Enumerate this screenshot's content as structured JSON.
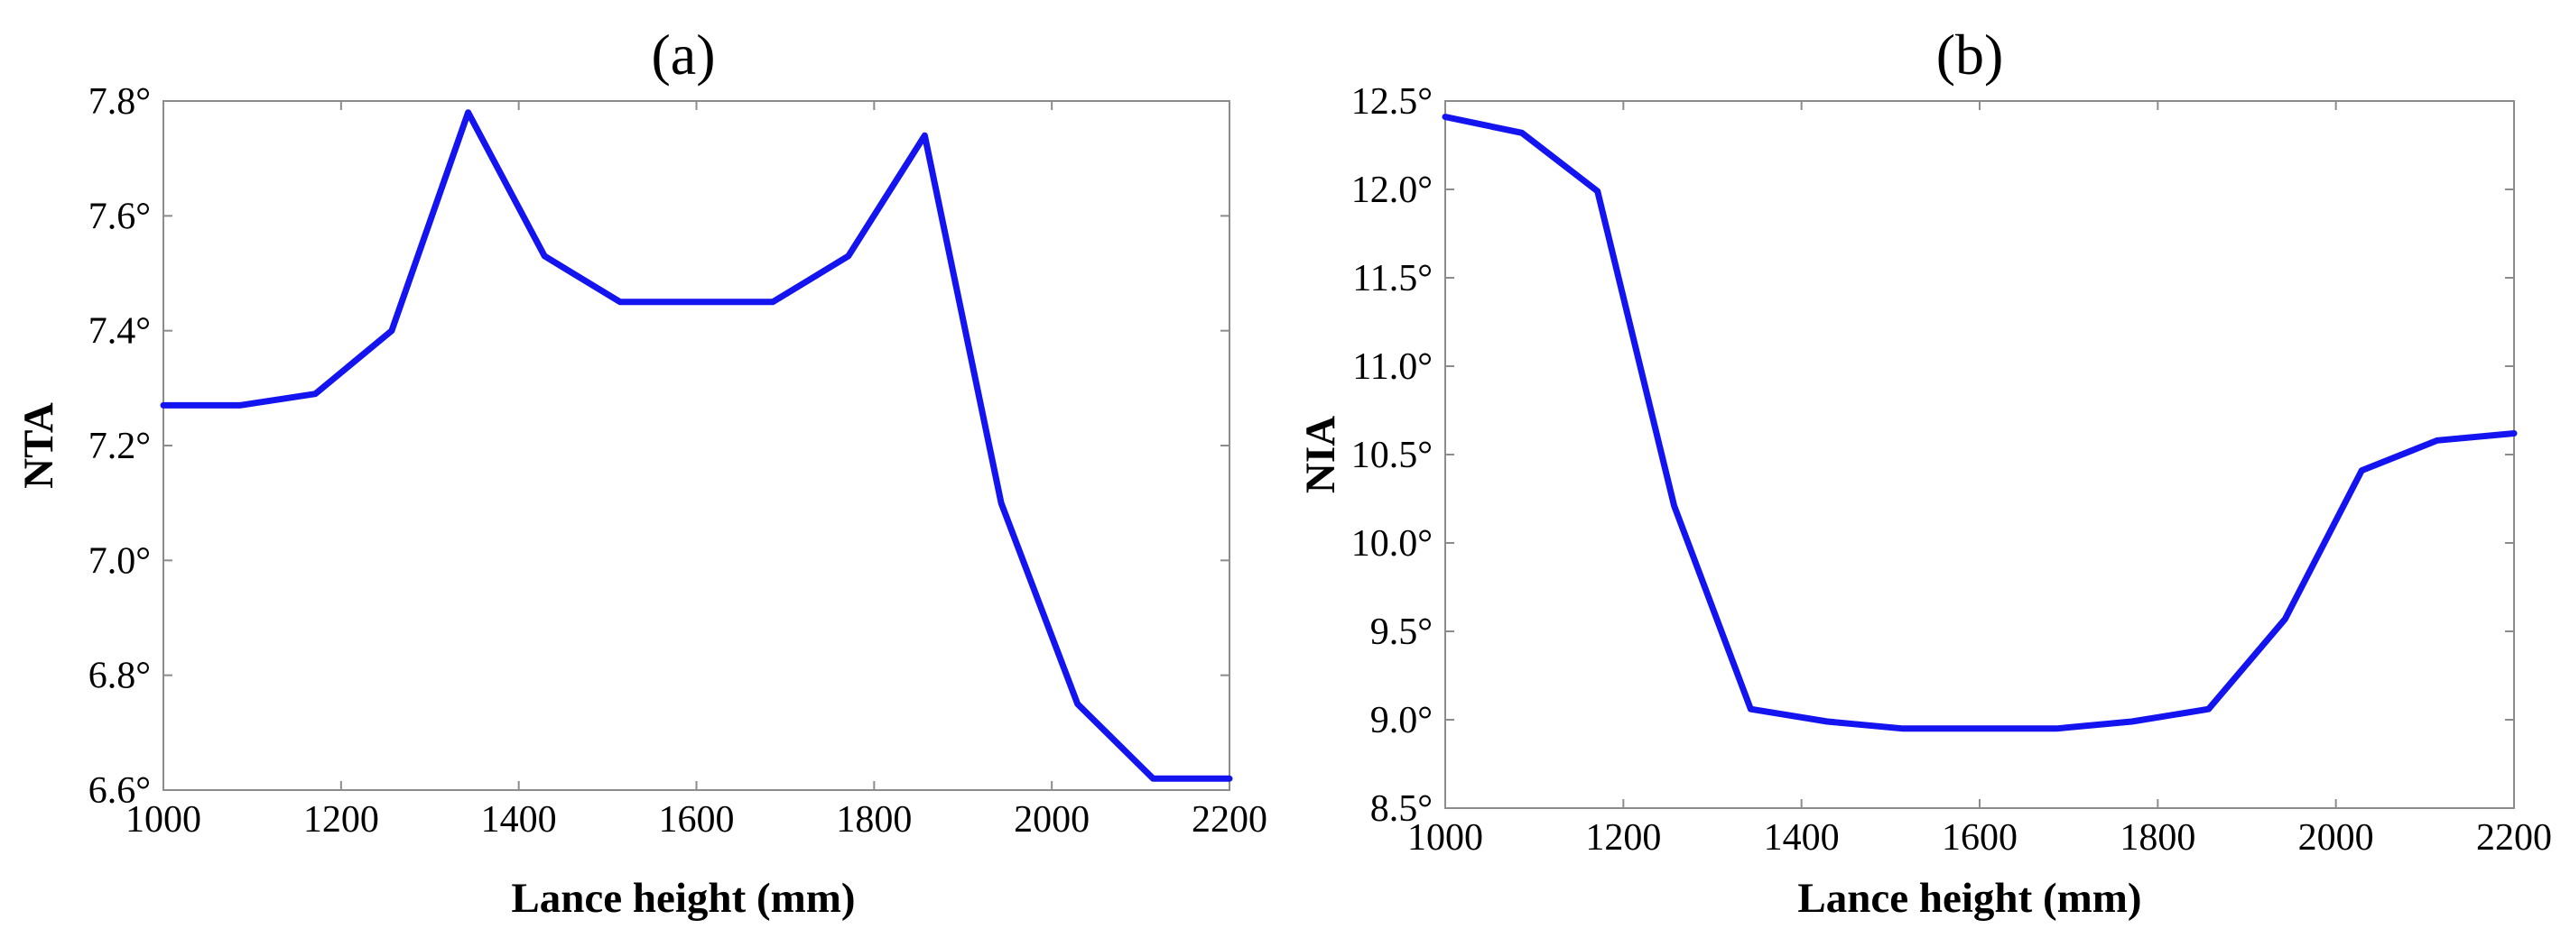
{
  "colors": {
    "series": "#1414f0",
    "axis": "#8c8c8c",
    "text": "#000000"
  },
  "chart_data": [
    {
      "type": "line",
      "title": "(a)",
      "xlabel": "Lance height (mm)",
      "ylabel": "NTA",
      "xlim": [
        1000,
        2200
      ],
      "ylim": [
        6.6,
        7.8
      ],
      "xticks": [
        1000,
        1200,
        1400,
        1600,
        1800,
        2000,
        2200
      ],
      "xtick_labels": [
        "1000",
        "1200",
        "1400",
        "1600",
        "1800",
        "2000",
        "2200"
      ],
      "yticks": [
        6.6,
        6.8,
        7.0,
        7.2,
        7.4,
        7.6,
        7.8
      ],
      "ytick_labels": [
        "6.6°",
        "6.8°",
        "7.0°",
        "7.2°",
        "7.4°",
        "7.6°",
        "7.8°"
      ],
      "series": [
        {
          "name": "NTA",
          "x": [
            1000,
            1086,
            1171,
            1257,
            1343,
            1429,
            1514,
            1600,
            1686,
            1771,
            1857,
            1943,
            2029,
            2114,
            2200
          ],
          "y": [
            7.27,
            7.27,
            7.29,
            7.4,
            7.78,
            7.53,
            7.45,
            7.45,
            7.45,
            7.53,
            7.74,
            7.1,
            6.75,
            6.62,
            6.62
          ]
        }
      ]
    },
    {
      "type": "line",
      "title": "(b)",
      "xlabel": "Lance height (mm)",
      "ylabel": "NIA",
      "xlim": [
        1000,
        2200
      ],
      "ylim": [
        8.5,
        12.5
      ],
      "xticks": [
        1000,
        1200,
        1400,
        1600,
        1800,
        2000,
        2200
      ],
      "xtick_labels": [
        "1000",
        "1200",
        "1400",
        "1600",
        "1800",
        "2000",
        "2200"
      ],
      "yticks": [
        8.5,
        9.0,
        9.5,
        10.0,
        10.5,
        11.0,
        11.5,
        12.0,
        12.5
      ],
      "ytick_labels": [
        "8.5°",
        "9.0°",
        "9.5°",
        "10.0°",
        "10.5°",
        "11.0°",
        "11.5°",
        "12.0°",
        "12.5°"
      ],
      "series": [
        {
          "name": "NIA",
          "x": [
            1000,
            1086,
            1171,
            1257,
            1343,
            1429,
            1514,
            1600,
            1686,
            1771,
            1857,
            1943,
            2029,
            2114,
            2200
          ],
          "y": [
            12.41,
            12.32,
            11.99,
            10.21,
            9.06,
            8.99,
            8.95,
            8.95,
            8.95,
            8.99,
            9.06,
            9.57,
            10.41,
            10.58,
            10.62
          ]
        }
      ]
    }
  ]
}
